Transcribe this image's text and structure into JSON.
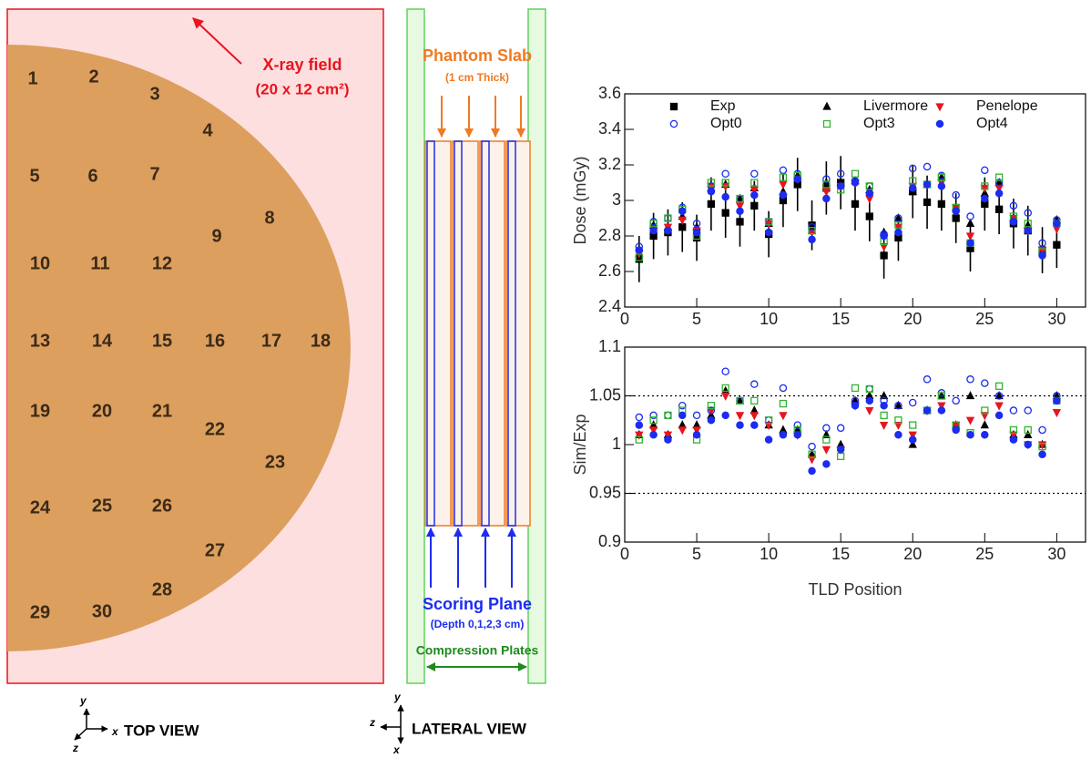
{
  "top_view": {
    "field_label": "X-ray field",
    "field_size": "(20 x 12 cm²)",
    "tld_labels": [
      "1",
      "2",
      "3",
      "4",
      "5",
      "6",
      "7",
      "8",
      "9",
      "10",
      "11",
      "12",
      "13",
      "14",
      "15",
      "16",
      "17",
      "18",
      "19",
      "20",
      "21",
      "22",
      "23",
      "24",
      "25",
      "26",
      "27",
      "28",
      "29",
      "30"
    ],
    "view_label": "TOP VIEW",
    "axes": {
      "y": "y",
      "x": "x",
      "z": "z"
    }
  },
  "lateral_view": {
    "slab_label": "Phantom Slab",
    "slab_note": "(1 cm Thick)",
    "plane_label": "Scoring Plane",
    "plane_note": "(Depth 0,1,2,3 cm)",
    "plates_label": "Compression Plates",
    "view_label": "LATERAL VIEW",
    "axes": {
      "y": "y",
      "z": "z",
      "x": "x"
    }
  },
  "chart_data": [
    {
      "type": "scatter",
      "ylabel": "Dose (mGy)",
      "legend": "top",
      "legend_columns": 3,
      "x": [
        1,
        2,
        3,
        4,
        5,
        6,
        7,
        8,
        9,
        10,
        11,
        12,
        13,
        14,
        15,
        16,
        17,
        18,
        19,
        20,
        21,
        22,
        23,
        24,
        25,
        26,
        27,
        28,
        29,
        30
      ],
      "xlim": [
        0,
        32
      ],
      "xticks": [
        0,
        5,
        10,
        15,
        20,
        25,
        30
      ],
      "ylim": [
        2.4,
        3.6
      ],
      "yticks": [
        2.4,
        2.6,
        2.8,
        3,
        3.2,
        3.4,
        3.6
      ],
      "series": [
        {
          "name": "Exp",
          "color": "#000000",
          "marker": "square",
          "filled": true,
          "values": [
            2.67,
            2.8,
            2.82,
            2.85,
            2.79,
            2.98,
            2.93,
            2.88,
            2.97,
            2.81,
            3.0,
            3.09,
            2.86,
            3.07,
            3.1,
            2.98,
            2.91,
            2.69,
            2.79,
            3.05,
            2.99,
            2.98,
            2.9,
            2.73,
            2.98,
            2.95,
            2.87,
            2.83,
            2.72,
            2.75
          ],
          "errors": [
            0.13,
            0.13,
            0.13,
            0.14,
            0.13,
            0.15,
            0.14,
            0.14,
            0.14,
            0.13,
            0.15,
            0.15,
            0.14,
            0.15,
            0.15,
            0.15,
            0.14,
            0.13,
            0.13,
            0.15,
            0.15,
            0.15,
            0.14,
            0.13,
            0.15,
            0.14,
            0.14,
            0.14,
            0.13,
            0.13
          ]
        },
        {
          "name": "Livermore",
          "color": "#000000",
          "marker": "triangle-up",
          "filled": true,
          "values": [
            2.7,
            2.86,
            2.85,
            2.91,
            2.85,
            3.07,
            3.09,
            3.01,
            3.07,
            2.87,
            3.05,
            3.14,
            2.83,
            3.1,
            3.1,
            3.11,
            3.06,
            2.82,
            2.9,
            3.05,
            3.09,
            3.13,
            2.96,
            2.87,
            3.04,
            3.1,
            2.9,
            2.86,
            2.72,
            2.89
          ]
        },
        {
          "name": "Penelope",
          "color": "#e8141e",
          "marker": "triangle-down",
          "filled": true,
          "values": [
            2.7,
            2.84,
            2.85,
            2.89,
            2.83,
            3.08,
            3.08,
            2.97,
            3.06,
            2.87,
            3.09,
            3.12,
            2.82,
            3.05,
            3.08,
            3.1,
            3.01,
            2.74,
            2.85,
            3.08,
            3.09,
            3.1,
            2.96,
            2.8,
            3.07,
            3.07,
            2.9,
            2.83,
            2.72,
            2.84
          ]
        },
        {
          "name": "Opt0",
          "color": "#1c2cf0",
          "marker": "circle",
          "filled": false,
          "values": [
            2.74,
            2.88,
            2.9,
            2.96,
            2.87,
            3.08,
            3.15,
            3.01,
            3.15,
            2.88,
            3.17,
            3.15,
            2.85,
            3.12,
            3.15,
            3.11,
            3.08,
            2.81,
            2.9,
            3.18,
            3.19,
            3.14,
            3.03,
            2.91,
            3.17,
            3.1,
            2.97,
            2.93,
            2.76,
            2.89
          ]
        },
        {
          "name": "Opt3",
          "color": "#2fb52f",
          "marker": "square",
          "filled": false,
          "values": [
            2.68,
            2.87,
            2.9,
            2.95,
            2.8,
            3.1,
            3.1,
            3.01,
            3.1,
            2.88,
            3.13,
            3.14,
            2.83,
            3.09,
            3.06,
            3.15,
            3.08,
            2.77,
            2.86,
            3.11,
            3.09,
            3.13,
            2.96,
            2.76,
            3.08,
            3.13,
            2.91,
            2.87,
            2.71,
            2.87
          ]
        },
        {
          "name": "Opt4",
          "color": "#1c2cf0",
          "marker": "circle",
          "filled": true,
          "values": [
            2.72,
            2.83,
            2.83,
            2.94,
            2.82,
            3.05,
            3.02,
            2.94,
            3.03,
            2.82,
            3.03,
            3.12,
            2.78,
            3.01,
            3.08,
            3.1,
            3.04,
            2.8,
            2.82,
            3.07,
            3.09,
            3.08,
            2.94,
            2.76,
            3.01,
            3.04,
            2.88,
            2.83,
            2.69,
            2.87
          ]
        }
      ]
    },
    {
      "type": "scatter",
      "ylabel": "Sim/Exp",
      "xlabel": "TLD Position",
      "x": [
        1,
        2,
        3,
        4,
        5,
        6,
        7,
        8,
        9,
        10,
        11,
        12,
        13,
        14,
        15,
        16,
        17,
        18,
        19,
        20,
        21,
        22,
        23,
        24,
        25,
        26,
        27,
        28,
        29,
        30
      ],
      "xlim": [
        0,
        32
      ],
      "xticks": [
        0,
        5,
        10,
        15,
        20,
        25,
        30
      ],
      "ylim": [
        0.9,
        1.1
      ],
      "yticks": [
        0.9,
        0.95,
        1,
        1.05,
        1.1
      ],
      "ref_lines": [
        1.05,
        0.95
      ],
      "series": [
        {
          "color": "#000000",
          "marker": "triangle-up",
          "filled": true,
          "values": [
            1.01,
            1.02,
            1.01,
            1.02,
            1.02,
            1.03,
            1.055,
            1.045,
            1.035,
            1.02,
            1.015,
            1.015,
            0.99,
            1.01,
            1.0,
            1.045,
            1.05,
            1.05,
            1.04,
            1.0,
            1.035,
            1.05,
            1.02,
            1.05,
            1.02,
            1.05,
            1.01,
            1.01,
            1.0,
            1.05
          ]
        },
        {
          "color": "#e8141e",
          "marker": "triangle-down",
          "filled": true,
          "values": [
            1.01,
            1.015,
            1.01,
            1.015,
            1.015,
            1.035,
            1.05,
            1.03,
            1.03,
            1.02,
            1.03,
            1.01,
            0.985,
            0.995,
            0.995,
            1.04,
            1.035,
            1.02,
            1.02,
            1.01,
            1.035,
            1.04,
            1.02,
            1.025,
            1.03,
            1.04,
            1.01,
            1.0,
            1.0,
            1.033
          ]
        },
        {
          "color": "#1c2cf0",
          "marker": "circle",
          "filled": false,
          "values": [
            1.028,
            1.03,
            1.03,
            1.04,
            1.03,
            1.035,
            1.075,
            1.045,
            1.062,
            1.025,
            1.058,
            1.02,
            0.998,
            1.017,
            1.017,
            1.045,
            1.057,
            1.045,
            1.04,
            1.043,
            1.067,
            1.053,
            1.045,
            1.067,
            1.063,
            1.05,
            1.035,
            1.035,
            1.015,
            1.05
          ]
        },
        {
          "color": "#2fb52f",
          "marker": "square",
          "filled": false,
          "values": [
            1.005,
            1.025,
            1.03,
            1.035,
            1.005,
            1.04,
            1.058,
            1.045,
            1.045,
            1.025,
            1.042,
            1.015,
            0.99,
            1.005,
            0.988,
            1.058,
            1.057,
            1.03,
            1.025,
            1.02,
            1.035,
            1.05,
            1.02,
            1.012,
            1.035,
            1.06,
            1.015,
            1.015,
            0.998,
            1.045
          ]
        },
        {
          "color": "#1c2cf0",
          "marker": "circle",
          "filled": true,
          "values": [
            1.02,
            1.01,
            1.005,
            1.03,
            1.01,
            1.025,
            1.03,
            1.02,
            1.02,
            1.005,
            1.01,
            1.01,
            0.973,
            0.98,
            0.995,
            1.04,
            1.045,
            1.04,
            1.01,
            1.005,
            1.035,
            1.035,
            1.015,
            1.01,
            1.01,
            1.03,
            1.005,
            1.0,
            0.99,
            1.045
          ]
        }
      ]
    }
  ]
}
